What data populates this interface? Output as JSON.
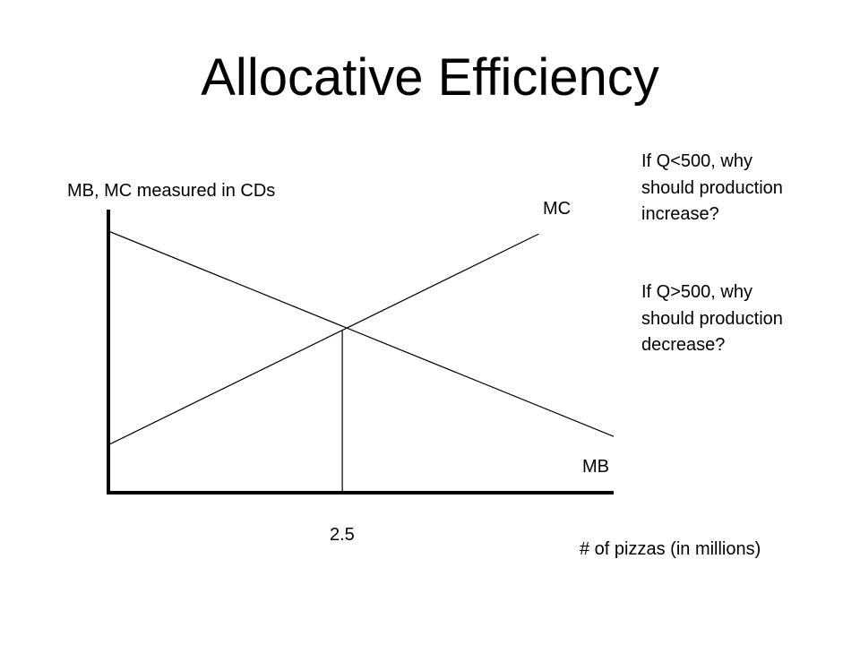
{
  "slide": {
    "title": "Allocative Efficiency",
    "questions": [
      "If Q<500, why should production increase?",
      "If Q>500, why should production decrease?"
    ]
  },
  "chart_data": {
    "type": "line",
    "title": "Allocative Efficiency",
    "ylabel": "MB, MC measured in CDs",
    "xlabel": "# of pizzas (in millions)",
    "xlim": [
      0,
      5.4
    ],
    "ylim": [
      0,
      10
    ],
    "x_tick_labels": [
      {
        "value": 2.5,
        "label": "2.5"
      }
    ],
    "grid": false,
    "series": [
      {
        "name": "MB",
        "x": [
          0,
          5.4
        ],
        "y": [
          9.3,
          2.0
        ]
      },
      {
        "name": "MC",
        "x": [
          0,
          4.6
        ],
        "y": [
          1.7,
          9.2
        ]
      }
    ],
    "reference_lines": [
      {
        "type": "vertical",
        "x": 2.5,
        "y_to": 5.8
      }
    ],
    "colors": {
      "axis": "#000000",
      "curve": "#000000"
    }
  }
}
